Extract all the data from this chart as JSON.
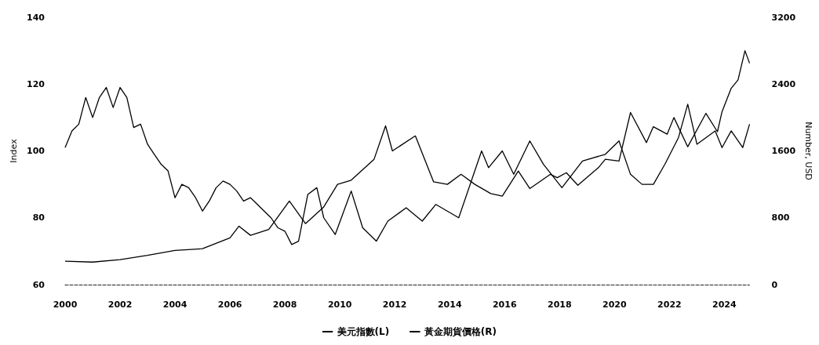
{
  "chart_data": {
    "type": "line",
    "ylabel": "Index",
    "y2label": "Number, USD",
    "xlim": [
      "2000-01",
      "2024-12"
    ],
    "xticks": [
      "2000",
      "2002",
      "2004",
      "2006",
      "2008",
      "2010",
      "2012",
      "2014",
      "2016",
      "2018",
      "2020",
      "2022",
      "2024"
    ],
    "ylim": [
      60,
      140
    ],
    "yticks": [
      60,
      80,
      100,
      120,
      140
    ],
    "y2lim": [
      0,
      3200
    ],
    "y2ticks": [
      0,
      800,
      1600,
      2400,
      3200
    ],
    "grid": false,
    "legend": "bottom",
    "marker": "none",
    "line_style": "solid",
    "series": [
      {
        "name": "美元指數(L)",
        "color": "#000000",
        "axis": "y",
        "x": [
          "2000-01",
          "2000-04",
          "2000-07",
          "2000-10",
          "2001-01",
          "2001-04",
          "2001-07",
          "2001-10",
          "2002-01",
          "2002-04",
          "2002-07",
          "2002-10",
          "2003-01",
          "2003-04",
          "2003-07",
          "2003-10",
          "2004-01",
          "2004-04",
          "2004-07",
          "2004-10",
          "2005-01",
          "2005-04",
          "2005-07",
          "2005-10",
          "2006-01",
          "2006-04",
          "2006-07",
          "2006-10",
          "2007-01",
          "2007-04",
          "2007-07",
          "2007-10",
          "2008-01",
          "2008-04",
          "2008-07",
          "2008-11",
          "2009-03",
          "2009-06",
          "2009-11",
          "2010-06",
          "2010-11",
          "2011-05",
          "2011-10",
          "2012-06",
          "2013-01",
          "2013-07",
          "2014-05",
          "2015-03",
          "2015-06",
          "2015-12",
          "2016-05",
          "2016-12",
          "2017-06",
          "2018-02",
          "2018-11",
          "2019-09",
          "2020-03",
          "2020-08",
          "2021-01",
          "2021-06",
          "2021-11",
          "2022-05",
          "2022-09",
          "2023-01",
          "2023-09",
          "2023-12",
          "2024-04",
          "2024-09",
          "2024-12"
        ],
        "values": [
          101,
          106,
          108,
          116,
          110,
          116,
          119,
          113,
          119,
          116,
          107,
          108,
          102,
          99,
          96,
          94,
          86,
          90,
          89,
          86,
          82,
          85,
          89,
          91,
          90,
          88,
          85,
          86,
          84,
          82,
          80,
          77,
          76,
          72,
          73,
          87,
          89,
          80,
          75,
          88,
          77,
          73,
          79,
          83,
          79,
          84,
          80,
          100,
          95,
          100,
          93,
          103,
          96,
          89,
          97,
          99,
          103,
          93,
          90,
          90,
          96,
          104,
          114,
          102,
          106,
          101,
          106,
          101,
          108
        ]
      },
      {
        "name": "黃金期貨價格(R)",
        "color": "#000000",
        "axis": "y2",
        "x": [
          "2000-01",
          "2001-01",
          "2002-01",
          "2003-01",
          "2004-01",
          "2005-01",
          "2006-01",
          "2006-05",
          "2006-10",
          "2007-06",
          "2008-03",
          "2008-10",
          "2009-06",
          "2009-12",
          "2010-06",
          "2010-12",
          "2011-04",
          "2011-09",
          "2011-12",
          "2012-10",
          "2013-06",
          "2013-12",
          "2014-06",
          "2014-12",
          "2015-07",
          "2015-12",
          "2016-07",
          "2016-12",
          "2017-09",
          "2017-12",
          "2018-04",
          "2018-09",
          "2019-06",
          "2019-09",
          "2020-03",
          "2020-08",
          "2021-03",
          "2021-06",
          "2021-12",
          "2022-03",
          "2022-09",
          "2023-05",
          "2023-10",
          "2023-12",
          "2024-04",
          "2024-07",
          "2024-10",
          "2024-12"
        ],
        "values": [
          280,
          270,
          300,
          350,
          410,
          430,
          560,
          700,
          590,
          660,
          1000,
          730,
          930,
          1200,
          1250,
          1400,
          1500,
          1900,
          1600,
          1780,
          1230,
          1200,
          1320,
          1200,
          1090,
          1060,
          1360,
          1150,
          1320,
          1280,
          1340,
          1190,
          1400,
          1500,
          1480,
          2060,
          1700,
          1890,
          1800,
          2000,
          1650,
          2050,
          1830,
          2070,
          2350,
          2450,
          2800,
          2650
        ]
      }
    ]
  }
}
